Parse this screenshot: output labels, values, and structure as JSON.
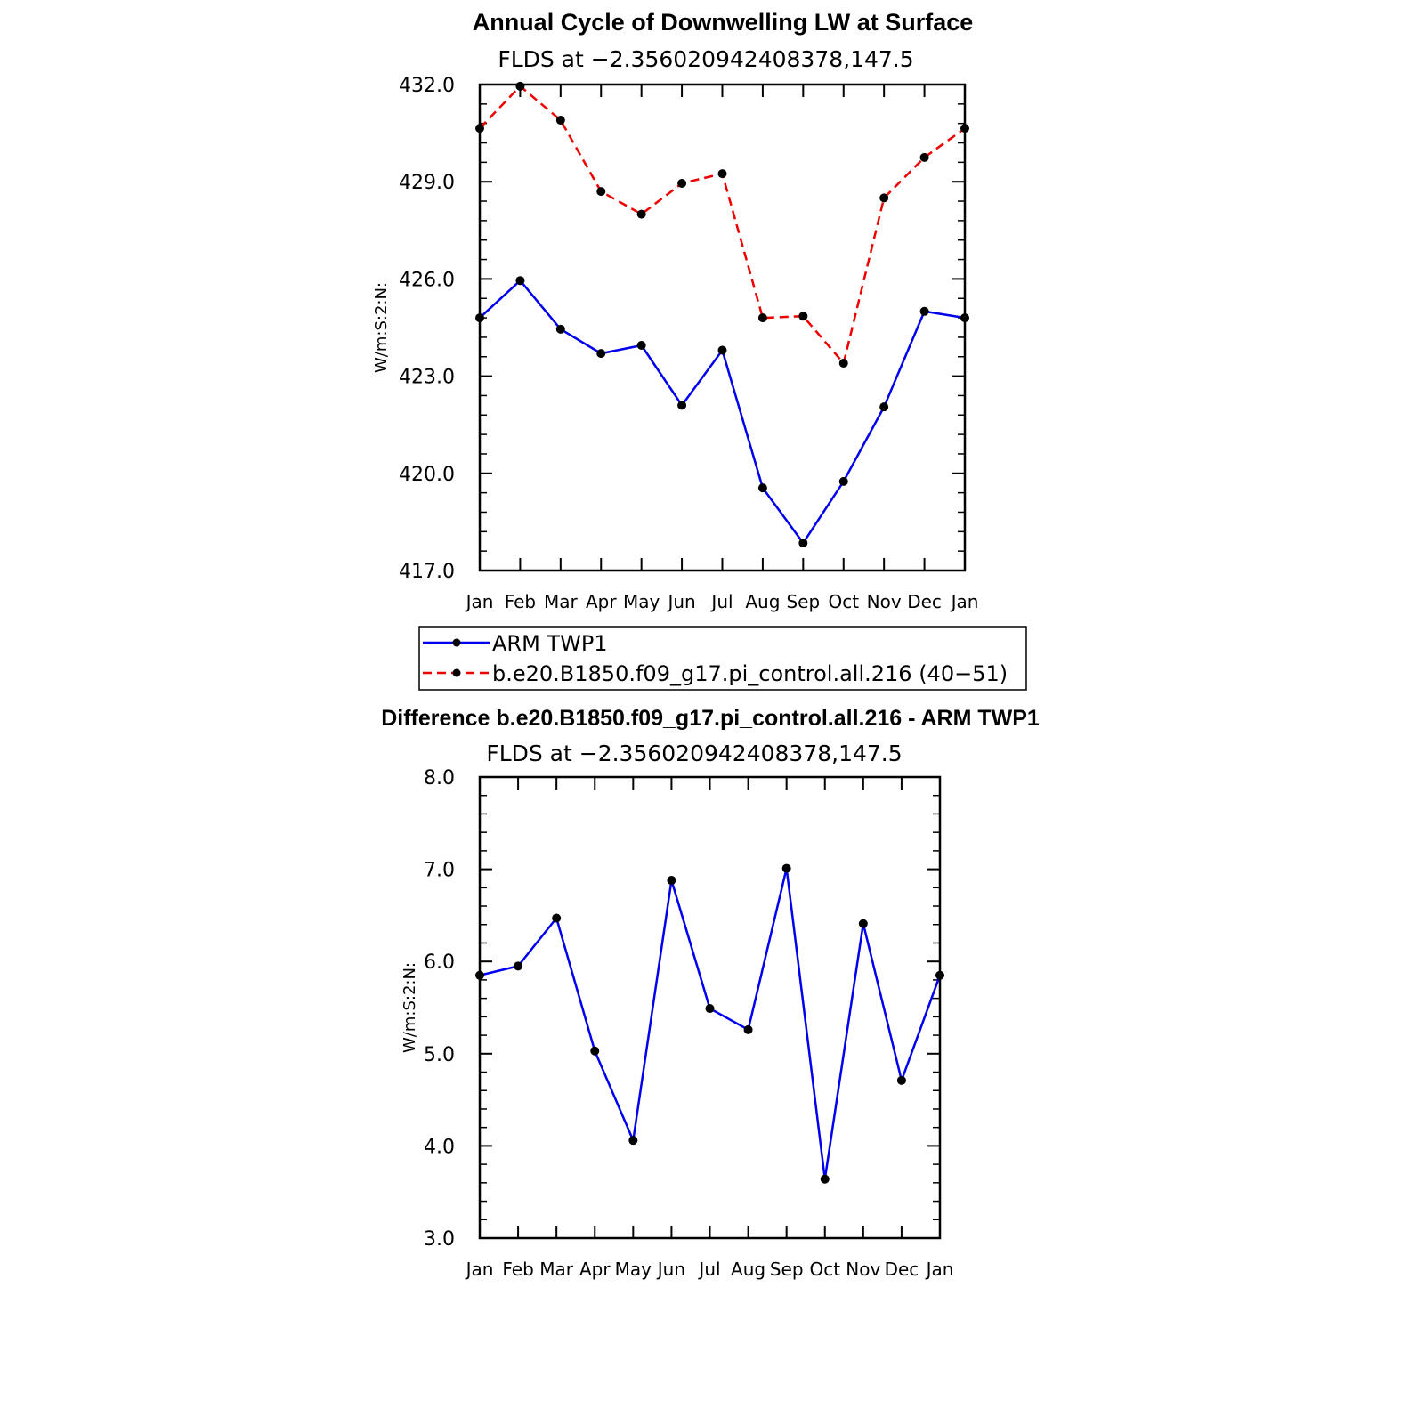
{
  "chart_data": [
    {
      "type": "line",
      "title": "Annual Cycle of Downwelling LW at Surface",
      "subtitle": "FLDS at −2.356020942408378,147.5",
      "ylabel": "W/m:S:2:N:",
      "xlabel": "",
      "categories": [
        "Jan",
        "Feb",
        "Mar",
        "Apr",
        "May",
        "Jun",
        "Jul",
        "Aug",
        "Sep",
        "Oct",
        "Nov",
        "Dec",
        "Jan"
      ],
      "ylim": [
        417.0,
        432.0
      ],
      "yticks": [
        "417.0",
        "420.0",
        "423.0",
        "426.0",
        "429.0",
        "432.0"
      ],
      "grid": false,
      "legend_position": "bottom",
      "series": [
        {
          "name": "ARM TWP1",
          "color": "#0000ee",
          "style": "solid",
          "values": [
            424.8,
            425.95,
            424.45,
            423.7,
            423.95,
            422.1,
            423.8,
            419.55,
            417.85,
            419.75,
            422.05,
            425.0,
            424.8
          ]
        },
        {
          "name": "b.e20.B1850.f09_g17.pi_control.all.216 (40−51)",
          "color": "#ee0000",
          "style": "dashed",
          "values": [
            430.65,
            431.95,
            430.9,
            428.7,
            428.0,
            428.95,
            429.25,
            424.8,
            424.85,
            423.4,
            428.5,
            429.75,
            430.65
          ]
        }
      ]
    },
    {
      "type": "line",
      "title": "Difference b.e20.B1850.f09_g17.pi_control.all.216 - ARM TWP1",
      "subtitle": "FLDS at −2.356020942408378,147.5",
      "ylabel": "W/m:S:2:N:",
      "xlabel": "",
      "categories": [
        "Jan",
        "Feb",
        "Mar",
        "Apr",
        "May",
        "Jun",
        "Jul",
        "Aug",
        "Sep",
        "Oct",
        "Nov",
        "Dec",
        "Jan"
      ],
      "ylim": [
        3.0,
        8.0
      ],
      "yticks": [
        "3.0",
        "4.0",
        "5.0",
        "6.0",
        "7.0",
        "8.0"
      ],
      "grid": false,
      "series": [
        {
          "color": "#0000ee",
          "style": "solid",
          "values": [
            5.85,
            5.95,
            6.47,
            5.03,
            4.06,
            6.88,
            5.49,
            5.26,
            7.01,
            3.64,
            6.41,
            4.71,
            5.85
          ]
        }
      ]
    }
  ]
}
